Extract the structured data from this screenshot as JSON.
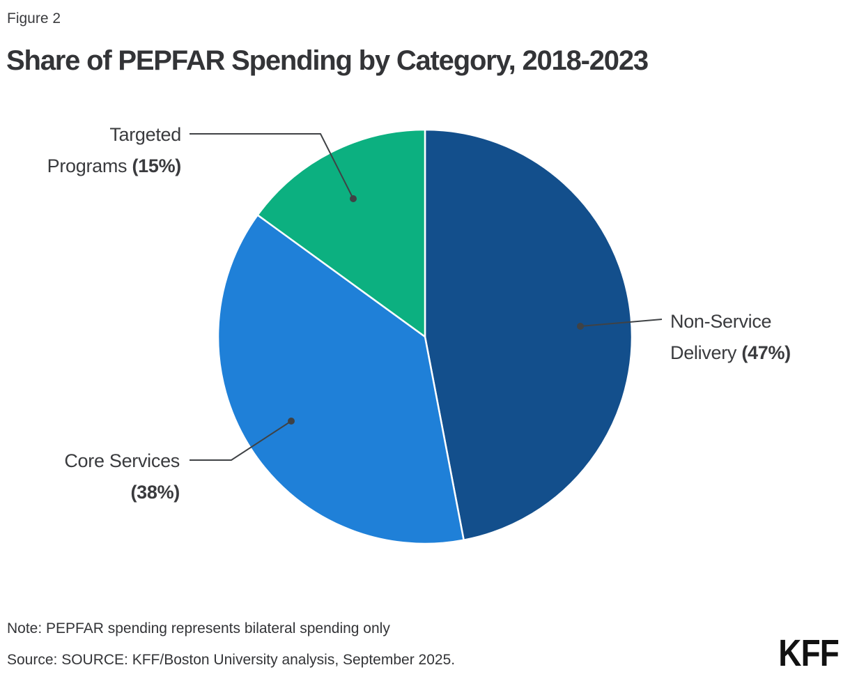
{
  "figure_label": "Figure 2",
  "title": "Share of PEPFAR Spending by Category, 2018-2023",
  "chart_data": {
    "type": "pie",
    "title": "Share of PEPFAR Spending by Category, 2018-2023",
    "categories": [
      "Non-Service Delivery",
      "Core Services",
      "Targeted Programs"
    ],
    "values": [
      47,
      38,
      15
    ],
    "unit": "percent",
    "colors": [
      "#134F8C",
      "#1F80D8",
      "#0CB080"
    ],
    "start_angle_deg": 0,
    "direction": "clockwise",
    "slice_divider_color": "#FFFFFF",
    "legend_position": "external-callout-labels"
  },
  "callouts": [
    {
      "line1": "Targeted",
      "line2": "Programs",
      "pct": "(15%)"
    },
    {
      "line1": "Non-Service",
      "line2": "Delivery",
      "pct": "(47%)"
    },
    {
      "line1": "Core Services",
      "line2": "",
      "pct": "(38%)"
    }
  ],
  "footer": {
    "note": "Note: PEPFAR spending represents bilateral spending only",
    "source": "Source: SOURCE: KFF/Boston University analysis, September 2025.",
    "logo": "KFF"
  },
  "colors": {
    "text": "#333437",
    "leader_line": "#3F4245",
    "background": "#FFFFFF",
    "logo": "#111111"
  }
}
